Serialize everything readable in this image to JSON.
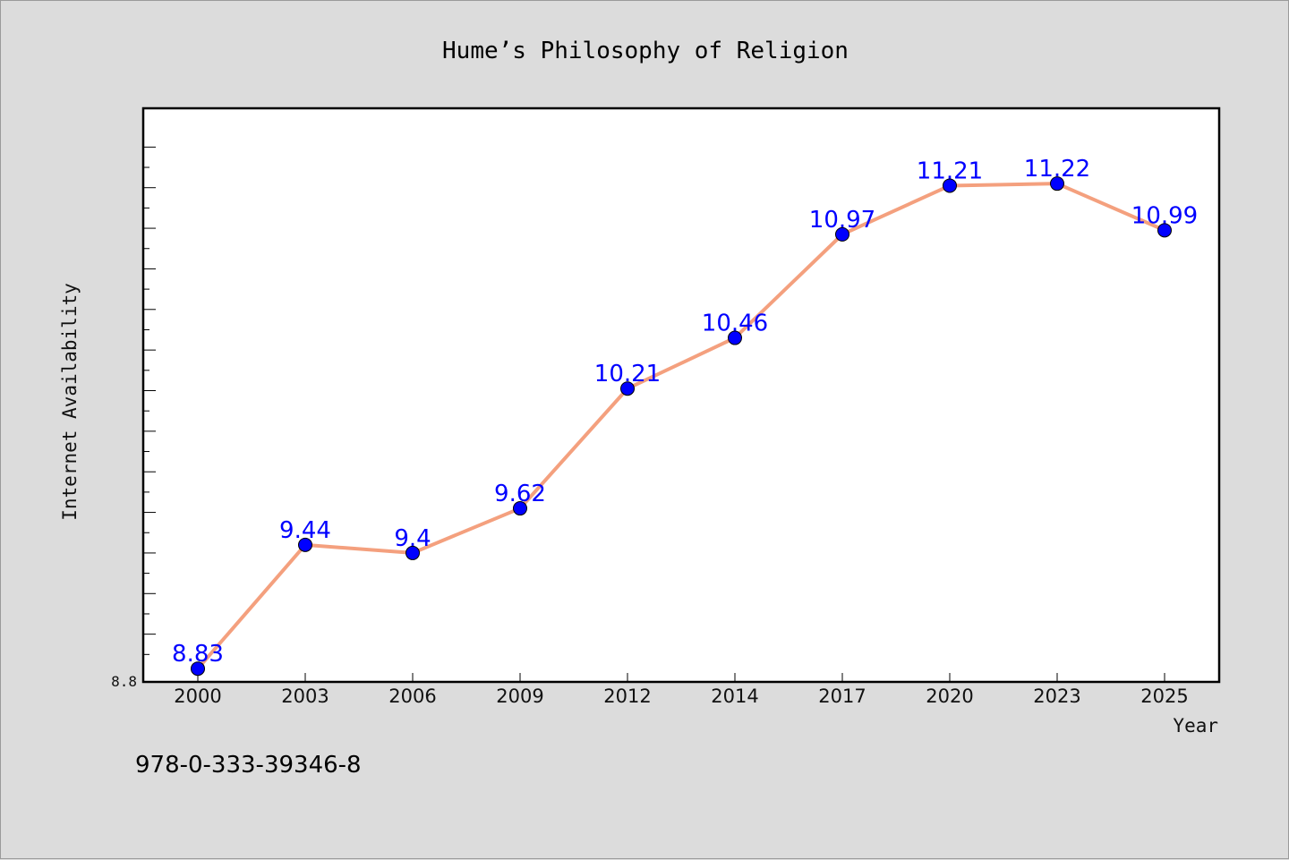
{
  "chart_data": {
    "type": "line",
    "title": "Hume’s Philosophy of Religion",
    "xlabel": "Year",
    "ylabel": "Internet Availability",
    "categories": [
      "2000",
      "2003",
      "2006",
      "2009",
      "2012",
      "2014",
      "2017",
      "2020",
      "2023",
      "2025"
    ],
    "series": [
      {
        "values": [
          8.83,
          9.44,
          9.4,
          9.62,
          10.21,
          10.46,
          10.97,
          11.21,
          11.22,
          10.99
        ]
      }
    ],
    "y_tick_labels": [
      "8.8"
    ],
    "ylim": [
      8.8,
      11.6
    ],
    "grid": false,
    "line_color": "#f4a07e",
    "marker_color": "#0000ff",
    "label_color": "#0000ff"
  },
  "footer_text": "978-0-333-39346-8"
}
